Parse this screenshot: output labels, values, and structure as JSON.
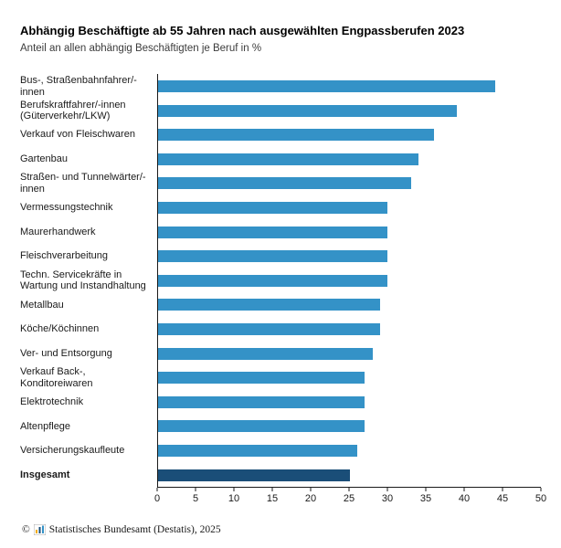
{
  "header": {
    "title": "Abhängig Beschäftigte ab 55 Jahren nach ausgewählten Engpassberufen 2023",
    "subtitle": "Anteil an allen abhängig Beschäftigten je Beruf in %"
  },
  "footer": {
    "copyright_symbol": "©",
    "text": "Statistisches Bundesamt (Destatis), 2025"
  },
  "colors": {
    "bar": "#3492c7",
    "bar_total": "#1a4e78",
    "axis": "#1a1a1a"
  },
  "chart_data": {
    "type": "bar",
    "orientation": "horizontal",
    "title": "Abhängig Beschäftigte ab 55 Jahren nach ausgewählten Engpassberufen 2023",
    "subtitle": "Anteil an allen abhängig Beschäftigten je Beruf in %",
    "categories": [
      "Bus-, Straßenbahnfahrer/-innen",
      "Berufskraftfahrer/-innen (Güterverkehr/LKW)",
      "Verkauf von Fleischwaren",
      "Gartenbau",
      "Straßen- und Tunnelwärter/-innen",
      "Vermessungstechnik",
      "Maurerhandwerk",
      "Fleischverarbeitung",
      "Techn. Servicekräfte in Wartung und Instandhaltung",
      "Metallbau",
      "Köche/Köchinnen",
      "Ver- und Entsorgung",
      "Verkauf Back-, Konditoreiwaren",
      "Elektrotechnik",
      "Altenpflege",
      "Versicherungskaufleute",
      "Insgesamt"
    ],
    "values": [
      44,
      39,
      36,
      34,
      33,
      30,
      30,
      30,
      30,
      29,
      29,
      28,
      27,
      27,
      27,
      26,
      25
    ],
    "highlight_category": "Insgesamt",
    "xlabel": "",
    "ylabel": "",
    "xlim": [
      0,
      50
    ],
    "xticks": [
      0,
      5,
      10,
      15,
      20,
      25,
      30,
      35,
      40,
      45,
      50
    ],
    "grid": false,
    "legend": "none"
  }
}
